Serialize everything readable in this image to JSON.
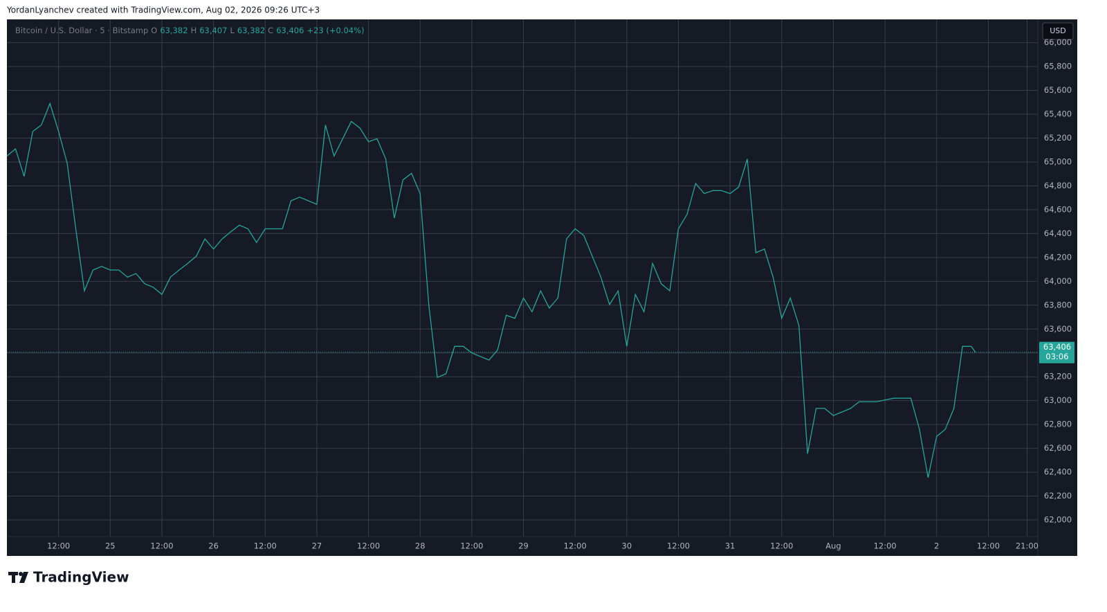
{
  "attribution": "YordanLyanchev created with TradingView.com, Aug 02, 2026 09:26 UTC+3",
  "brand": "TradingView",
  "currency": "USD",
  "chart_data": {
    "type": "line",
    "symbol": "Bitcoin / U.S. Dollar · 5 · Bitstamp",
    "ohlc": [
      {
        "key": "O",
        "text": "63,382"
      },
      {
        "key": "H",
        "text": "63,407"
      },
      {
        "key": "L",
        "text": "63,382"
      },
      {
        "key": "C",
        "text": "63,406"
      }
    ],
    "change": "+23 (+0.04%)",
    "last_price": {
      "value": 63406,
      "label": "63,406",
      "countdown": "03:06"
    },
    "x": [
      0,
      2,
      4,
      6,
      8,
      10,
      12,
      14,
      16,
      18,
      20,
      22,
      24,
      26,
      28,
      30,
      32,
      34,
      36,
      38,
      40,
      42,
      44,
      46,
      48,
      50,
      52,
      54,
      56,
      58,
      60,
      62,
      64,
      66,
      68,
      70,
      72,
      74,
      76,
      78,
      80,
      82,
      84,
      86,
      88,
      90,
      92,
      94,
      96,
      98,
      100,
      102,
      104,
      106,
      108,
      110,
      112,
      114,
      116,
      118,
      120,
      122,
      124,
      126,
      128,
      130,
      132,
      134,
      136,
      138,
      140,
      142,
      144,
      146,
      148,
      150,
      152,
      154,
      156,
      158,
      160,
      162,
      164,
      166,
      168,
      170,
      172,
      174,
      176,
      178,
      180,
      182,
      184,
      186,
      188,
      190,
      192,
      194,
      196,
      198,
      200,
      202,
      204,
      206,
      208,
      210,
      212,
      214,
      216,
      218,
      220,
      222,
      224,
      225
    ],
    "series": [
      {
        "name": "BTCUSD",
        "color": "#26a69a",
        "values": [
          65050,
          65110,
          64880,
          65255,
          65310,
          65490,
          65255,
          64990,
          64440,
          63920,
          64095,
          64125,
          64095,
          64095,
          64035,
          64065,
          63980,
          63950,
          63890,
          64035,
          64095,
          64150,
          64210,
          64355,
          64270,
          64355,
          64415,
          64470,
          64440,
          64325,
          64440,
          64440,
          64440,
          64675,
          64705,
          64675,
          64645,
          65310,
          65050,
          65195,
          65340,
          65285,
          65170,
          65195,
          65025,
          64530,
          64850,
          64905,
          64735,
          63805,
          63195,
          63225,
          63455,
          63455,
          63400,
          63370,
          63340,
          63425,
          63715,
          63690,
          63860,
          63745,
          63920,
          63775,
          63860,
          64355,
          64440,
          64385,
          64210,
          64035,
          63805,
          63920,
          63455,
          63890,
          63745,
          64150,
          63980,
          63920,
          64440,
          64560,
          64820,
          64735,
          64760,
          64760,
          64735,
          64790,
          65025,
          64240,
          64270,
          64035,
          63690,
          63860,
          63630,
          62555,
          62935,
          62935,
          62875,
          62905,
          62935,
          62990,
          62990,
          62990,
          63005,
          63020,
          63020,
          63020,
          62760,
          62355,
          62700,
          62760,
          62935,
          63455,
          63455,
          63406
        ]
      }
    ],
    "xlim": [
      0,
      239.5
    ],
    "xticks": [
      {
        "value": 12,
        "label": "12:00"
      },
      {
        "value": 24,
        "label": "25"
      },
      {
        "value": 36,
        "label": "12:00"
      },
      {
        "value": 48,
        "label": "26"
      },
      {
        "value": 60,
        "label": "12:00"
      },
      {
        "value": 72,
        "label": "27"
      },
      {
        "value": 84,
        "label": "12:00"
      },
      {
        "value": 96,
        "label": "28"
      },
      {
        "value": 108,
        "label": "12:00"
      },
      {
        "value": 120,
        "label": "29"
      },
      {
        "value": 132,
        "label": "12:00"
      },
      {
        "value": 144,
        "label": "30"
      },
      {
        "value": 156,
        "label": "12:00"
      },
      {
        "value": 168,
        "label": "31"
      },
      {
        "value": 180,
        "label": "12:00"
      },
      {
        "value": 192,
        "label": "Aug"
      },
      {
        "value": 204,
        "label": "12:00"
      },
      {
        "value": 216,
        "label": "2"
      },
      {
        "value": 228,
        "label": "12:00"
      },
      {
        "value": 237,
        "label": "21:00"
      }
    ],
    "ylim": [
      61861,
      66195
    ],
    "yticks": [
      {
        "value": 62000,
        "label": "62,000"
      },
      {
        "value": 62200,
        "label": "62,200"
      },
      {
        "value": 62400,
        "label": "62,400"
      },
      {
        "value": 62600,
        "label": "62,600"
      },
      {
        "value": 62800,
        "label": "62,800"
      },
      {
        "value": 63000,
        "label": "63,000"
      },
      {
        "value": 63200,
        "label": "63,200"
      },
      {
        "value": 63400,
        "label": "63,400"
      },
      {
        "value": 63600,
        "label": "63,600"
      },
      {
        "value": 63800,
        "label": "63,800"
      },
      {
        "value": 64000,
        "label": "64,000"
      },
      {
        "value": 64200,
        "label": "64,200"
      },
      {
        "value": 64400,
        "label": "64,400"
      },
      {
        "value": 64600,
        "label": "64,600"
      },
      {
        "value": 64800,
        "label": "64,800"
      },
      {
        "value": 65000,
        "label": "65,000"
      },
      {
        "value": 65200,
        "label": "65,200"
      },
      {
        "value": 65400,
        "label": "65,400"
      },
      {
        "value": 65600,
        "label": "65,600"
      },
      {
        "value": 65800,
        "label": "65,800"
      },
      {
        "value": 66000,
        "label": "66,000"
      }
    ],
    "grid": true
  }
}
